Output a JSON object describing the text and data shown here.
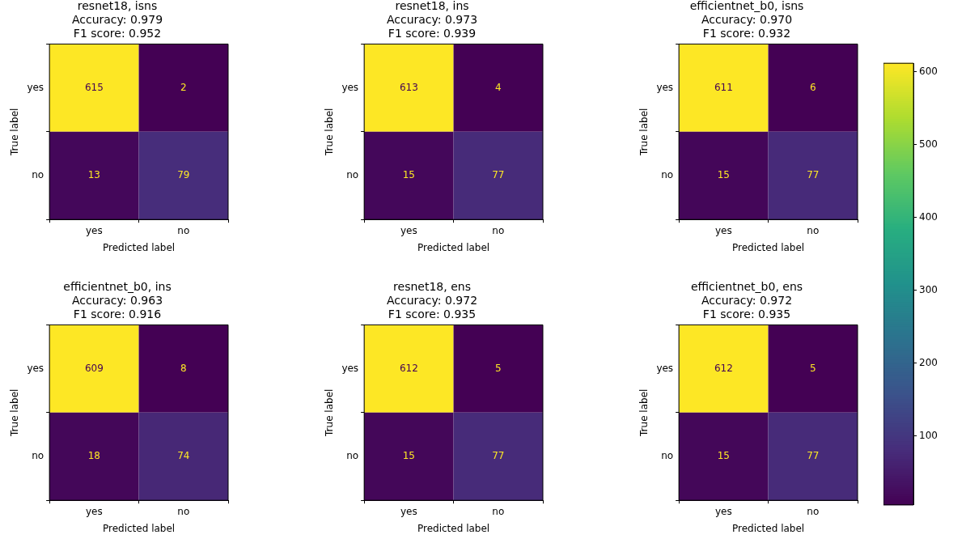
{
  "chart_data": [
    {
      "type": "heatmap",
      "title": "resnet18, isns\nAccuracy: 0.979\nF1 score: 0.952",
      "xlabel": "Predicted label",
      "ylabel": "True label",
      "categories": [
        "yes",
        "no"
      ],
      "y_categories": [
        "yes",
        "no"
      ],
      "cells": [
        [
          615,
          2
        ],
        [
          13,
          79
        ]
      ],
      "data_labels": true
    },
    {
      "type": "heatmap",
      "title": "resnet18, ins\nAccuracy: 0.973\nF1 score: 0.939",
      "xlabel": "Predicted label",
      "ylabel": "True label",
      "categories": [
        "yes",
        "no"
      ],
      "y_categories": [
        "yes",
        "no"
      ],
      "cells": [
        [
          613,
          4
        ],
        [
          15,
          77
        ]
      ],
      "data_labels": true
    },
    {
      "type": "heatmap",
      "title": "efficientnet_b0, isns\nAccuracy: 0.970\nF1 score: 0.932",
      "xlabel": "Predicted label",
      "ylabel": "True label",
      "categories": [
        "yes",
        "no"
      ],
      "y_categories": [
        "yes",
        "no"
      ],
      "cells": [
        [
          611,
          6
        ],
        [
          15,
          77
        ]
      ],
      "data_labels": true
    },
    {
      "type": "heatmap",
      "title": "efficientnet_b0, ins\nAccuracy: 0.963\nF1 score: 0.916",
      "xlabel": "Predicted label",
      "ylabel": "True label",
      "categories": [
        "yes",
        "no"
      ],
      "y_categories": [
        "yes",
        "no"
      ],
      "cells": [
        [
          609,
          8
        ],
        [
          18,
          74
        ]
      ],
      "data_labels": true
    },
    {
      "type": "heatmap",
      "title": "resnet18, ens\nAccuracy: 0.972\nF1 score: 0.935",
      "xlabel": "Predicted label",
      "ylabel": "True label",
      "categories": [
        "yes",
        "no"
      ],
      "y_categories": [
        "yes",
        "no"
      ],
      "cells": [
        [
          612,
          5
        ],
        [
          15,
          77
        ]
      ],
      "data_labels": true
    },
    {
      "type": "heatmap",
      "title": "efficientnet_b0, ens\nAccuracy: 0.972\nF1 score: 0.935",
      "xlabel": "Predicted label",
      "ylabel": "True label",
      "categories": [
        "yes",
        "no"
      ],
      "y_categories": [
        "yes",
        "no"
      ],
      "cells": [
        [
          612,
          5
        ],
        [
          15,
          77
        ]
      ],
      "data_labels": true,
      "clim": [
        5,
        612
      ],
      "cticks": [
        100,
        200,
        300,
        400,
        500,
        600
      ]
    }
  ]
}
